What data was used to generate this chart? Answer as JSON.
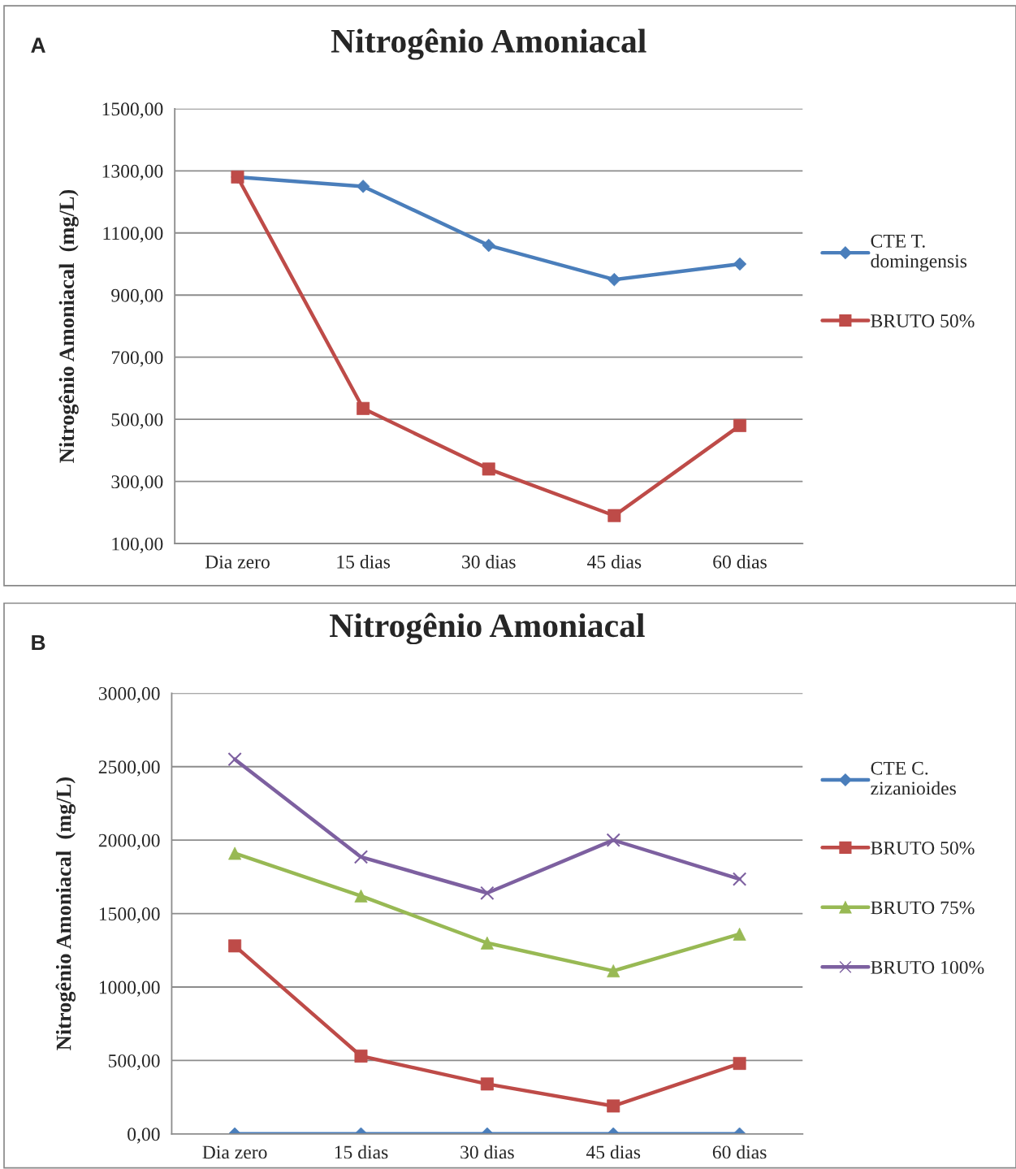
{
  "chart_data": [
    {
      "type": "line",
      "title": "Nitrogênio Amoniacal",
      "ylabel": "Nitrogênio Amoniacal  (mg/L)",
      "annotations": [
        "A"
      ],
      "categories": [
        "Dia zero",
        "15 dias",
        "30 dias",
        "45 dias",
        "60 dias"
      ],
      "series": [
        {
          "name": "CTE T.\ndomingensis",
          "color": "#4a7ebb",
          "marker": "diamond",
          "values": [
            1280,
            1250,
            1060,
            950,
            1000
          ]
        },
        {
          "name": "BRUTO 50%",
          "color": "#be4b48",
          "marker": "square",
          "values": [
            1280,
            535,
            340,
            190,
            480
          ]
        }
      ],
      "ylim": [
        100,
        1500
      ],
      "yticks": [
        {
          "value": 100,
          "label": "100,00"
        },
        {
          "value": 300,
          "label": "300,00"
        },
        {
          "value": 500,
          "label": "500,00"
        },
        {
          "value": 700,
          "label": "700,00"
        },
        {
          "value": 900,
          "label": "900,00"
        },
        {
          "value": 1100,
          "label": "1100,00"
        },
        {
          "value": 1300,
          "label": "1300,00"
        },
        {
          "value": 1500,
          "label": "1500,00"
        }
      ],
      "grid": "y",
      "legend": "right",
      "line_style": "solid"
    },
    {
      "type": "line",
      "title": "Nitrogênio Amoniacal",
      "ylabel": "Nitrogênio Amoniacal  (mg/L)",
      "annotations": [
        "B"
      ],
      "categories": [
        "Dia zero",
        "15 dias",
        "30 dias",
        "45 dias",
        "60 dias"
      ],
      "series": [
        {
          "name": "CTE C.\nzizanioides",
          "color": "#4a7ebb",
          "marker": "diamond",
          "values": [
            0,
            0,
            0,
            0,
            0
          ]
        },
        {
          "name": "BRUTO 50%",
          "color": "#be4b48",
          "marker": "square",
          "values": [
            1280,
            530,
            340,
            190,
            480
          ]
        },
        {
          "name": "BRUTO 75%",
          "color": "#98b954",
          "marker": "triangle",
          "values": [
            1910,
            1620,
            1300,
            1110,
            1360
          ]
        },
        {
          "name": "BRUTO 100%",
          "color": "#7d60a0",
          "marker": "cross",
          "values": [
            2550,
            1885,
            1640,
            2000,
            1735
          ]
        }
      ],
      "ylim": [
        0,
        3000
      ],
      "yticks": [
        {
          "value": 0,
          "label": "0,00"
        },
        {
          "value": 500,
          "label": "500,00"
        },
        {
          "value": 1000,
          "label": "1000,00"
        },
        {
          "value": 1500,
          "label": "1500,00"
        },
        {
          "value": 2000,
          "label": "2000,00"
        },
        {
          "value": 2500,
          "label": "2500,00"
        },
        {
          "value": 3000,
          "label": "3000,00"
        }
      ],
      "grid": "y",
      "legend": "right",
      "line_style": "solid"
    }
  ]
}
